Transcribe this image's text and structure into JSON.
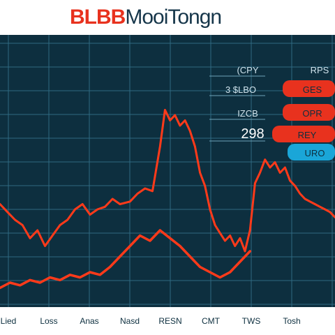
{
  "header": {
    "title_brand": "BLBB",
    "title_rest": "MooiTongn"
  },
  "colors": {
    "background": "#0d2f3f",
    "grid": "#2f6a82",
    "series": "#ff3a1a",
    "badge_red": "#e8321e",
    "badge_blue": "#1aa6d8"
  },
  "ticker": {
    "rows": [
      {
        "label": "(CPY",
        "badge": "RPS",
        "badge_color": "red"
      },
      {
        "label": "3 $LBO",
        "badge": "GES",
        "badge_color": "red"
      },
      {
        "label": "IZCB",
        "badge": "OPR",
        "badge_color": "red"
      },
      {
        "label": "298",
        "badge": "REY",
        "badge_color": "red"
      },
      {
        "label": "",
        "badge": "URO",
        "badge_color": "blue"
      }
    ]
  },
  "chart_data": {
    "type": "line",
    "title": "",
    "xlabel": "",
    "ylabel": "",
    "categories": [
      "Lied",
      "Loss",
      "Anas",
      "Nasd",
      "RESN",
      "CMT",
      "TWS",
      "Tosh"
    ],
    "ylim": [
      0,
      100
    ],
    "grid": true,
    "legend": "none",
    "series": [
      {
        "values": [
          [
            0,
            38
          ],
          [
            3,
            35
          ],
          [
            6,
            32
          ],
          [
            9,
            30
          ],
          [
            12,
            25
          ],
          [
            15,
            28
          ],
          [
            18,
            22
          ],
          [
            21,
            26
          ],
          [
            24,
            30
          ],
          [
            27,
            32
          ],
          [
            30,
            36
          ],
          [
            33,
            38
          ],
          [
            36,
            34
          ],
          [
            39,
            36
          ],
          [
            42,
            37
          ],
          [
            45,
            40
          ],
          [
            48,
            38
          ],
          [
            52,
            39
          ],
          [
            55,
            42
          ],
          [
            58,
            44
          ],
          [
            61,
            43
          ],
          [
            64,
            60
          ],
          [
            66,
            74
          ],
          [
            68,
            70
          ],
          [
            70,
            72
          ],
          [
            72,
            68
          ],
          [
            74,
            70
          ],
          [
            76,
            66
          ],
          [
            78,
            60
          ],
          [
            80,
            50
          ],
          [
            82,
            45
          ],
          [
            84,
            36
          ],
          [
            86,
            30
          ],
          [
            88,
            27
          ],
          [
            90,
            24
          ],
          [
            92,
            26
          ],
          [
            94,
            22
          ],
          [
            96,
            25
          ],
          [
            98,
            20
          ],
          [
            100,
            28
          ],
          [
            102,
            46
          ],
          [
            104,
            50
          ],
          [
            106,
            55
          ],
          [
            108,
            52
          ],
          [
            110,
            54
          ],
          [
            112,
            50
          ],
          [
            114,
            52
          ],
          [
            116,
            47
          ],
          [
            118,
            45
          ],
          [
            120,
            42
          ],
          [
            122,
            40
          ],
          [
            124,
            39
          ],
          [
            126,
            38
          ],
          [
            128,
            37
          ],
          [
            130,
            36
          ],
          [
            132,
            35
          ],
          [
            134,
            33
          ]
        ]
      },
      {
        "values": [
          [
            0,
            6
          ],
          [
            4,
            8
          ],
          [
            8,
            7
          ],
          [
            12,
            9
          ],
          [
            16,
            8
          ],
          [
            20,
            10
          ],
          [
            24,
            9
          ],
          [
            28,
            11
          ],
          [
            32,
            10
          ],
          [
            36,
            12
          ],
          [
            40,
            11
          ],
          [
            44,
            14
          ],
          [
            48,
            18
          ],
          [
            52,
            22
          ],
          [
            56,
            26
          ],
          [
            60,
            24
          ],
          [
            64,
            28
          ],
          [
            68,
            25
          ],
          [
            72,
            22
          ],
          [
            76,
            18
          ],
          [
            80,
            14
          ],
          [
            84,
            12
          ],
          [
            88,
            10
          ],
          [
            92,
            12
          ],
          [
            96,
            16
          ],
          [
            100,
            20
          ]
        ]
      }
    ]
  }
}
